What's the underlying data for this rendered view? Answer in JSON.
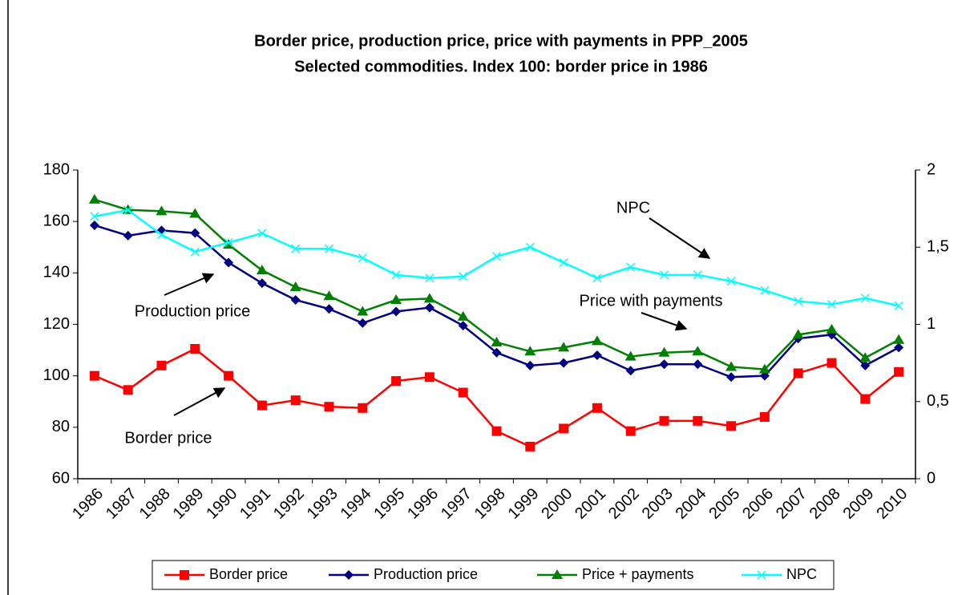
{
  "chart_data": {
    "type": "line",
    "title": "Border price, production price, price with payments in PPP_2005",
    "subtitle": "Selected commodities. Index 100: border price in 1986",
    "categories": [
      "1986",
      "1987",
      "1988",
      "1989",
      "1990",
      "1991",
      "1992",
      "1993",
      "1994",
      "1995",
      "1996",
      "1997",
      "1998",
      "1999",
      "2000",
      "2001",
      "2002",
      "2003",
      "2004",
      "2005",
      "2006",
      "2007",
      "2008",
      "2009",
      "2010"
    ],
    "series": [
      {
        "name": "Border price",
        "color": "#ff0000",
        "marker": "square",
        "values": [
          100,
          94.5,
          104,
          110.5,
          100,
          88.5,
          90.5,
          88,
          87.5,
          98,
          99.5,
          93.5,
          78.5,
          72.5,
          79.5,
          87.5,
          78.5,
          82.5,
          82.5,
          80.5,
          84,
          101,
          105,
          91,
          101.5
        ]
      },
      {
        "name": "Production price",
        "color": "#000080",
        "marker": "diamond",
        "values": [
          158.5,
          154.5,
          156.5,
          155.5,
          144,
          136,
          129.5,
          126,
          120.5,
          125,
          126.5,
          119.5,
          109,
          104,
          105,
          108,
          102,
          104.5,
          104.5,
          99.5,
          100,
          114.5,
          116,
          104,
          111
        ]
      },
      {
        "name": "Price + payments",
        "color": "#008000",
        "marker": "triangle",
        "values": [
          168.5,
          164.5,
          164,
          163,
          151,
          141,
          134.5,
          131,
          125,
          129.5,
          130,
          123,
          113,
          109.5,
          111,
          113.5,
          107.5,
          109,
          109.5,
          103.5,
          102.5,
          116,
          118,
          107,
          114
        ]
      },
      {
        "name": "NPC",
        "color": "#00ffff",
        "marker": "x",
        "axis": "y2",
        "values": [
          1.7,
          1.74,
          1.58,
          1.47,
          1.53,
          1.59,
          1.49,
          1.49,
          1.43,
          1.32,
          1.3,
          1.31,
          1.44,
          1.5,
          1.4,
          1.3,
          1.37,
          1.32,
          1.32,
          1.28,
          1.22,
          1.15,
          1.13,
          1.17,
          1.12
        ]
      }
    ],
    "ylim": [
      60,
      180
    ],
    "yticks": [
      60,
      80,
      100,
      120,
      140,
      160,
      180
    ],
    "y2lim": [
      0,
      2
    ],
    "y2ticks": [
      0,
      {
        "value": 0.5,
        "label": "0,5"
      },
      1,
      {
        "value": 1.5,
        "label": "1,5"
      },
      2
    ],
    "annotations": [
      "NPC",
      "Production price",
      "Price with payments",
      "Border price"
    ],
    "legend": "bottom"
  }
}
